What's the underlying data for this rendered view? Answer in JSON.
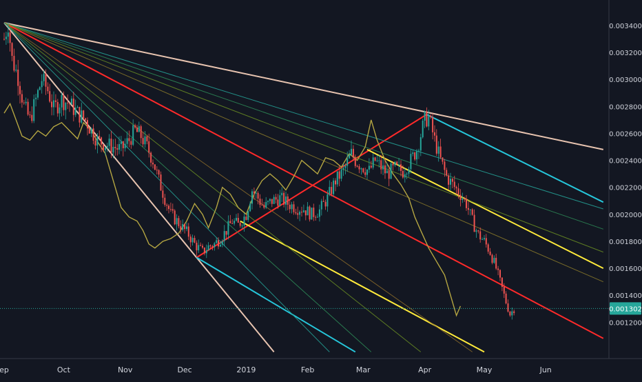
{
  "chart_data": {
    "type": "candlestick",
    "title": "",
    "xlabel": "",
    "ylabel": "",
    "ylim": [
      0.00098,
      0.0035
    ],
    "x_axis": {
      "ticks": [
        {
          "label": "ep",
          "date": "2018-09-01"
        },
        {
          "label": "Oct",
          "date": "2018-10-01"
        },
        {
          "label": "Nov",
          "date": "2018-11-01"
        },
        {
          "label": "Dec",
          "date": "2018-12-01"
        },
        {
          "label": "2019",
          "date": "2019-01-01"
        },
        {
          "label": "Feb",
          "date": "2019-02-01"
        },
        {
          "label": "Mar",
          "date": "2019-03-01"
        },
        {
          "label": "Apr",
          "date": "2019-04-01"
        },
        {
          "label": "May",
          "date": "2019-05-01"
        },
        {
          "label": "Jun",
          "date": "2019-06-01"
        }
      ]
    },
    "y_axis": {
      "ticks": [
        "0.003400",
        "0.003200",
        "0.003000",
        "0.002800",
        "0.002600",
        "0.002400",
        "0.002200",
        "0.002000",
        "0.001800",
        "0.001600",
        "0.001400",
        "0.001200"
      ]
    },
    "last_price": {
      "label": "0.001302",
      "value": 0.001302,
      "color": "#26a69a"
    },
    "price_path": [
      [
        "2018-09-01",
        0.0033
      ],
      [
        "2018-09-03",
        0.00342
      ],
      [
        "2018-09-05",
        0.00315
      ],
      [
        "2018-09-08",
        0.00302
      ],
      [
        "2018-09-11",
        0.0028
      ],
      [
        "2018-09-14",
        0.0027
      ],
      [
        "2018-09-17",
        0.00285
      ],
      [
        "2018-09-20",
        0.003
      ],
      [
        "2018-09-23",
        0.00292
      ],
      [
        "2018-09-26",
        0.00278
      ],
      [
        "2018-09-30",
        0.00285
      ],
      [
        "2018-10-04",
        0.00282
      ],
      [
        "2018-10-08",
        0.00275
      ],
      [
        "2018-10-12",
        0.0027
      ],
      [
        "2018-10-15",
        0.00262
      ],
      [
        "2018-10-18",
        0.00255
      ],
      [
        "2018-10-22",
        0.00252
      ],
      [
        "2018-10-26",
        0.0025
      ],
      [
        "2018-10-30",
        0.00248
      ],
      [
        "2018-11-03",
        0.00255
      ],
      [
        "2018-11-06",
        0.00262
      ],
      [
        "2018-11-09",
        0.00258
      ],
      [
        "2018-11-12",
        0.0025
      ],
      [
        "2018-11-15",
        0.0024
      ],
      [
        "2018-11-18",
        0.00225
      ],
      [
        "2018-11-21",
        0.00212
      ],
      [
        "2018-11-24",
        0.002
      ],
      [
        "2018-11-27",
        0.00195
      ],
      [
        "2018-11-30",
        0.0019
      ],
      [
        "2018-12-03",
        0.00185
      ],
      [
        "2018-12-06",
        0.00178
      ],
      [
        "2018-12-08",
        0.00175
      ],
      [
        "2018-12-10",
        0.00172
      ],
      [
        "2018-12-13",
        0.00176
      ],
      [
        "2018-12-16",
        0.00178
      ],
      [
        "2018-12-19",
        0.00182
      ],
      [
        "2018-12-22",
        0.00188
      ],
      [
        "2018-12-25",
        0.00195
      ],
      [
        "2018-12-28",
        0.00192
      ],
      [
        "2019-01-01",
        0.002
      ],
      [
        "2019-01-04",
        0.00218
      ],
      [
        "2019-01-07",
        0.00212
      ],
      [
        "2019-01-10",
        0.00205
      ],
      [
        "2019-01-14",
        0.0021
      ],
      [
        "2019-01-18",
        0.00212
      ],
      [
        "2019-01-22",
        0.00208
      ],
      [
        "2019-01-26",
        0.00205
      ],
      [
        "2019-01-30",
        0.00204
      ],
      [
        "2019-02-03",
        0.002
      ],
      [
        "2019-02-07",
        0.00203
      ],
      [
        "2019-02-11",
        0.00212
      ],
      [
        "2019-02-15",
        0.00225
      ],
      [
        "2019-02-19",
        0.00232
      ],
      [
        "2019-02-23",
        0.00245
      ],
      [
        "2019-02-25",
        0.0024
      ],
      [
        "2019-02-28",
        0.00236
      ],
      [
        "2019-03-04",
        0.00232
      ],
      [
        "2019-03-07",
        0.0024
      ],
      [
        "2019-03-10",
        0.00235
      ],
      [
        "2019-03-13",
        0.0023
      ],
      [
        "2019-03-17",
        0.00234
      ],
      [
        "2019-03-21",
        0.00232
      ],
      [
        "2019-03-25",
        0.0024
      ],
      [
        "2019-03-28",
        0.00248
      ],
      [
        "2019-04-01",
        0.0027
      ],
      [
        "2019-04-03",
        0.00272
      ],
      [
        "2019-04-06",
        0.00255
      ],
      [
        "2019-04-09",
        0.0024
      ],
      [
        "2019-04-12",
        0.00228
      ],
      [
        "2019-04-15",
        0.00222
      ],
      [
        "2019-04-19",
        0.00215
      ],
      [
        "2019-04-22",
        0.00208
      ],
      [
        "2019-04-25",
        0.00195
      ],
      [
        "2019-04-28",
        0.00185
      ],
      [
        "2019-05-01",
        0.0018
      ],
      [
        "2019-05-04",
        0.00172
      ],
      [
        "2019-05-07",
        0.0016
      ],
      [
        "2019-05-10",
        0.00145
      ],
      [
        "2019-05-12",
        0.00135
      ],
      [
        "2019-05-14",
        0.00126
      ],
      [
        "2019-05-16",
        0.0013
      ]
    ],
    "overlay_series": {
      "color": "#b5a642",
      "points": [
        [
          "2018-09-01",
          0.00275
        ],
        [
          "2018-09-04",
          0.00282
        ],
        [
          "2018-09-07",
          0.0027
        ],
        [
          "2018-09-10",
          0.00258
        ],
        [
          "2018-09-14",
          0.00255
        ],
        [
          "2018-09-18",
          0.00262
        ],
        [
          "2018-09-22",
          0.00258
        ],
        [
          "2018-09-26",
          0.00265
        ],
        [
          "2018-09-30",
          0.00268
        ],
        [
          "2018-10-04",
          0.00262
        ],
        [
          "2018-10-08",
          0.00256
        ],
        [
          "2018-10-11",
          0.00268
        ],
        [
          "2018-10-15",
          0.00262
        ],
        [
          "2018-10-18",
          0.00254
        ],
        [
          "2018-10-22",
          0.00245
        ],
        [
          "2018-10-26",
          0.00225
        ],
        [
          "2018-10-30",
          0.00205
        ],
        [
          "2018-11-03",
          0.00198
        ],
        [
          "2018-11-07",
          0.00195
        ],
        [
          "2018-11-10",
          0.00188
        ],
        [
          "2018-11-13",
          0.00178
        ],
        [
          "2018-11-16",
          0.00175
        ],
        [
          "2018-11-20",
          0.0018
        ],
        [
          "2018-11-24",
          0.00182
        ],
        [
          "2018-11-28",
          0.00186
        ],
        [
          "2018-12-02",
          0.00195
        ],
        [
          "2018-12-06",
          0.00208
        ],
        [
          "2018-12-10",
          0.002
        ],
        [
          "2018-12-13",
          0.0019
        ],
        [
          "2018-12-17",
          0.00205
        ],
        [
          "2018-12-20",
          0.0022
        ],
        [
          "2018-12-24",
          0.00215
        ],
        [
          "2018-12-28",
          0.00205
        ],
        [
          "2019-01-01",
          0.002
        ],
        [
          "2019-01-05",
          0.00215
        ],
        [
          "2019-01-09",
          0.00225
        ],
        [
          "2019-01-13",
          0.0023
        ],
        [
          "2019-01-17",
          0.00225
        ],
        [
          "2019-01-21",
          0.00218
        ],
        [
          "2019-01-25",
          0.00228
        ],
        [
          "2019-01-29",
          0.0024
        ],
        [
          "2019-02-02",
          0.00235
        ],
        [
          "2019-02-06",
          0.0023
        ],
        [
          "2019-02-10",
          0.00242
        ],
        [
          "2019-02-14",
          0.0024
        ],
        [
          "2019-02-18",
          0.00235
        ],
        [
          "2019-02-22",
          0.00245
        ],
        [
          "2019-02-26",
          0.0024
        ],
        [
          "2019-03-02",
          0.0025
        ],
        [
          "2019-03-05",
          0.0027
        ],
        [
          "2019-03-08",
          0.00255
        ],
        [
          "2019-03-12",
          0.0024
        ],
        [
          "2019-03-16",
          0.0023
        ],
        [
          "2019-03-20",
          0.00222
        ],
        [
          "2019-03-24",
          0.00212
        ],
        [
          "2019-03-27",
          0.00198
        ],
        [
          "2019-03-30",
          0.00188
        ],
        [
          "2019-04-03",
          0.00175
        ],
        [
          "2019-04-07",
          0.00165
        ],
        [
          "2019-04-11",
          0.00155
        ],
        [
          "2019-04-14",
          0.0014
        ],
        [
          "2019-04-17",
          0.00125
        ],
        [
          "2019-04-19",
          0.00132
        ]
      ]
    },
    "drawings": [
      {
        "kind": "trendline",
        "color": "#e8c4b0",
        "from": [
          "2018-09-01",
          0.00342
        ],
        "to": [
          "2019-06-30",
          0.00248
        ]
      },
      {
        "kind": "trendline",
        "color": "#e8c4b0",
        "from": [
          "2018-09-01",
          0.00342
        ],
        "to": [
          "2019-01-15",
          0.00098
        ]
      },
      {
        "kind": "trendline",
        "color": "#ff2a2a",
        "from": [
          "2018-09-01",
          0.00342
        ],
        "to": [
          "2019-06-30",
          0.00108
        ]
      },
      {
        "kind": "trendline",
        "color": "#ff2a2a",
        "from": [
          "2018-12-07",
          0.00168
        ],
        "to": [
          "2019-04-02",
          0.00274
        ]
      },
      {
        "kind": "trendline",
        "color": "#26c6da",
        "from": [
          "2019-04-02",
          0.00274
        ],
        "to": [
          "2019-06-30",
          0.00209
        ]
      },
      {
        "kind": "trendline",
        "color": "#26c6da",
        "from": [
          "2018-12-07",
          0.00168
        ],
        "to": [
          "2019-02-25",
          0.00098
        ]
      },
      {
        "kind": "trendline",
        "color": "#ffeb3b",
        "from": [
          "2019-03-03",
          0.00248
        ],
        "to": [
          "2019-06-30",
          0.0016
        ]
      },
      {
        "kind": "trendline",
        "color": "#ffeb3b",
        "from": [
          "2018-12-29",
          0.00195
        ],
        "to": [
          "2019-05-01",
          0.00098
        ]
      },
      {
        "kind": "fan",
        "color": "#26a69a",
        "from": [
          "2018-09-01",
          0.00342
        ],
        "to": [
          "2019-06-30",
          0.00204
        ]
      },
      {
        "kind": "fan",
        "color": "#2e8b57",
        "from": [
          "2018-09-01",
          0.00342
        ],
        "to": [
          "2019-06-30",
          0.00189
        ]
      },
      {
        "kind": "fan",
        "color": "#6b8e23",
        "from": [
          "2018-09-01",
          0.00342
        ],
        "to": [
          "2019-06-30",
          0.00172
        ]
      },
      {
        "kind": "fan",
        "color": "#8b7a2a",
        "from": [
          "2018-09-01",
          0.00342
        ],
        "to": [
          "2019-06-30",
          0.0015
        ]
      },
      {
        "kind": "fan",
        "color": "#8b6b2a",
        "from": [
          "2018-09-01",
          0.00342
        ],
        "to": [
          "2019-04-25",
          0.00098
        ]
      },
      {
        "kind": "fan",
        "color": "#6b8e23",
        "from": [
          "2018-09-01",
          0.00342
        ],
        "to": [
          "2019-03-30",
          0.00098
        ]
      },
      {
        "kind": "fan",
        "color": "#2e8b57",
        "from": [
          "2018-09-01",
          0.00342
        ],
        "to": [
          "2019-03-05",
          0.00098
        ]
      },
      {
        "kind": "fan",
        "color": "#26a69a",
        "from": [
          "2018-09-01",
          0.00342
        ],
        "to": [
          "2019-02-12",
          0.00098
        ]
      }
    ],
    "colors": {
      "background": "#131722",
      "up": "#26a69a",
      "down": "#ef5350",
      "axis_text": "#d1d4dc"
    }
  }
}
